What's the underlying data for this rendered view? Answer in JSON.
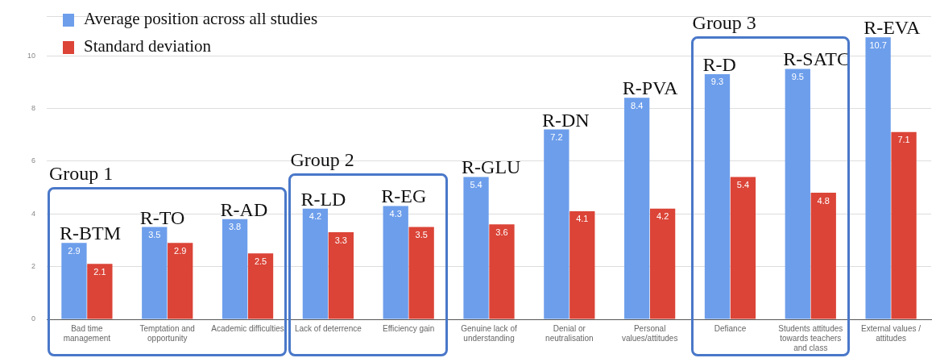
{
  "chart_data": {
    "type": "bar",
    "categories": [
      "Bad time management",
      "Temptation and opportunity",
      "Academic difficulties",
      "Lack of deterrence",
      "Efficiency gain",
      "Genuine lack of understanding",
      "Denial or neutralisation",
      "Personal values/attitudes",
      "Defiance",
      "Students attitudes towards teachers and class",
      "External values / attitudes"
    ],
    "series": [
      {
        "name": "Average position across all studies",
        "color": "#6d9eeb",
        "values": [
          2.9,
          3.5,
          3.8,
          4.2,
          4.3,
          5.4,
          7.2,
          8.4,
          9.3,
          9.5,
          10.7
        ]
      },
      {
        "name": "Standard deviation",
        "color": "#db4437",
        "values": [
          2.1,
          2.9,
          2.5,
          3.3,
          3.5,
          3.6,
          4.1,
          4.2,
          5.4,
          4.8,
          7.1
        ]
      }
    ],
    "ylim": [
      0,
      11.5
    ],
    "yticks": [
      0,
      2,
      4,
      6,
      8,
      10
    ],
    "grid": "y",
    "legend": "top left",
    "data_labels": true,
    "annotations": [
      {
        "text": "R-BTM",
        "x": "Bad time management",
        "y": 2.9
      },
      {
        "text": "R-TO",
        "x": "Temptation and opportunity",
        "y": 3.5
      },
      {
        "text": "R-AD",
        "x": "Academic difficulties",
        "y": 3.8
      },
      {
        "text": "R-LD",
        "x": "Lack of deterrence",
        "y": 4.2
      },
      {
        "text": "R-EG",
        "x": "Efficiency gain",
        "y": 4.3
      },
      {
        "text": "R-GLU",
        "x": "Genuine lack of understanding",
        "y": 5.4
      },
      {
        "text": "R-DN",
        "x": "Denial or neutralisation",
        "y": 7.2
      },
      {
        "text": "R-PVA",
        "x": "Personal values/attitudes",
        "y": 8.4
      },
      {
        "text": "R-D",
        "x": "Defiance",
        "y": 9.3
      },
      {
        "text": "R-SATC",
        "x": "Students attitudes towards teachers and class",
        "y": 9.5
      },
      {
        "text": "R-EVA",
        "x": "External values / attitudes",
        "y": 10.7
      },
      "Group 1",
      "Group 2",
      "Group 3"
    ]
  }
}
